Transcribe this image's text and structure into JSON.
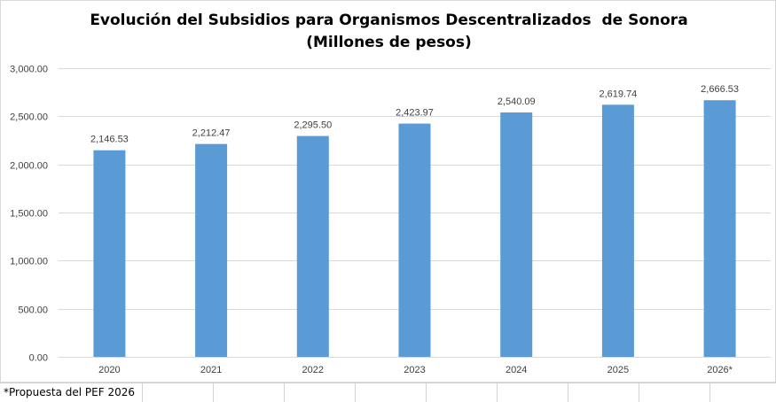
{
  "chart_data": {
    "type": "bar",
    "title": "Evolución del Subsidios para Organismos Descentralizados  de Sonora",
    "subtitle": "(Millones de pesos)",
    "categories": [
      "2020",
      "2021",
      "2022",
      "2023",
      "2024",
      "2025",
      "2026*"
    ],
    "values": [
      2146.53,
      2212.47,
      2295.5,
      2423.97,
      2540.09,
      2619.74,
      2666.53
    ],
    "value_labels": [
      "2,146.53",
      "2,212.47",
      "2,295.50",
      "2,423.97",
      "2,540.09",
      "2,619.74",
      "2,666.53"
    ],
    "ylim": [
      0,
      3000
    ],
    "yticks": [
      0,
      500,
      1000,
      1500,
      2000,
      2500,
      3000
    ],
    "ytick_labels": [
      "0.00",
      "500.00",
      "1,000.00",
      "1,500.00",
      "2,000.00",
      "2,500.00",
      "3,000.00"
    ],
    "xlabel": "",
    "ylabel": "",
    "grid": true,
    "bar_color": "#5B9BD5",
    "legend": "none"
  },
  "footnote": "*Propuesta del PEF 2026"
}
